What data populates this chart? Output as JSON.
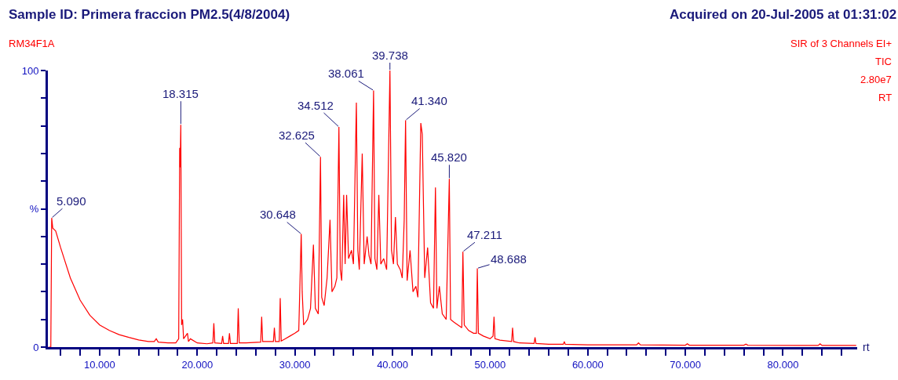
{
  "chart_data": {
    "type": "line",
    "title": "Sample ID: Primera fraccion PM2.5(4/8/2004)",
    "subtitle": "Acquired on 20-Jul-2005 at 01:31:02",
    "xlabel": "rt",
    "annotations": [
      "RM34F1A",
      "SIR of 3 Channels EI+",
      "TIC",
      "2.80e7",
      "RT",
      {
        "text": "5.090",
        "x": 5.09,
        "y": 46.7
      },
      {
        "text": "18.315",
        "x": 18.315,
        "y": 80.4
      },
      {
        "text": "30.648",
        "x": 30.648,
        "y": 40.9
      },
      {
        "text": "32.625",
        "x": 32.625,
        "y": 68.8
      },
      {
        "text": "34.512",
        "x": 34.512,
        "y": 79.6
      },
      {
        "text": "38.061",
        "x": 38.061,
        "y": 92.8
      },
      {
        "text": "39.738",
        "x": 39.738,
        "y": 100
      },
      {
        "text": "41.340",
        "x": 41.34,
        "y": 82
      },
      {
        "text": "45.820",
        "x": 45.82,
        "y": 60.8
      },
      {
        "text": "47.211",
        "x": 47.211,
        "y": 34.5
      },
      {
        "text": "48.688",
        "x": 48.688,
        "y": 28.5
      }
    ],
    "series": [
      {
        "color": "#ff0000",
        "x": [
          4.75,
          5.0,
          5.09,
          5.2,
          5.5,
          6,
          7,
          8,
          9,
          10,
          11,
          12,
          13,
          14,
          15,
          15.6,
          15.8,
          16,
          17,
          17.8,
          18.1,
          18.2,
          18.25,
          18.315,
          18.4,
          18.5,
          18.6,
          19,
          19.1,
          19.3,
          20,
          21,
          21.6,
          21.7,
          21.8,
          22.5,
          22.6,
          22.7,
          23.2,
          23.3,
          23.4,
          24.1,
          24.2,
          24.3,
          25,
          26.5,
          26.6,
          26.7,
          27.8,
          27.9,
          28,
          28.4,
          28.5,
          28.6,
          29,
          29.5,
          30,
          30.4,
          30.648,
          30.75,
          30.9,
          31.3,
          31.6,
          31.9,
          32.1,
          32.4,
          32.625,
          32.75,
          33,
          33.3,
          33.6,
          33.8,
          34.1,
          34.3,
          34.512,
          34.65,
          34.8,
          35.0,
          35.15,
          35.3,
          35.5,
          35.8,
          36.0,
          36.3,
          36.45,
          36.6,
          36.9,
          37.1,
          37.4,
          37.6,
          37.8,
          38.061,
          38.2,
          38.4,
          38.6,
          38.8,
          39.1,
          39.4,
          39.738,
          39.9,
          40.1,
          40.3,
          40.5,
          40.8,
          41.0,
          41.2,
          41.34,
          41.5,
          41.8,
          42.1,
          42.4,
          42.6,
          42.9,
          43.05,
          43.3,
          43.6,
          43.9,
          44.2,
          44.4,
          44.55,
          44.8,
          45.1,
          45.5,
          45.82,
          45.95,
          46.3,
          46.7,
          47.1,
          47.211,
          47.35,
          47.8,
          48.3,
          48.6,
          48.688,
          48.8,
          49.3,
          50.0,
          50.3,
          50.4,
          50.5,
          51,
          52.2,
          52.3,
          52.4,
          53,
          54.5,
          54.6,
          54.7,
          56,
          57.5,
          57.6,
          57.7,
          60,
          62,
          65,
          65.2,
          65.4,
          70,
          70.2,
          70.4,
          76,
          76.2,
          76.4,
          83.6,
          83.8,
          84,
          87.5
        ],
        "values": [
          0,
          0,
          46.7,
          43,
          42,
          36,
          25,
          17,
          11.5,
          8,
          6,
          4.5,
          3.5,
          2.6,
          2,
          2,
          3,
          1.8,
          1.5,
          1.5,
          3,
          72,
          65,
          80.4,
          8,
          10,
          3,
          5,
          2,
          3,
          1.5,
          1.2,
          1.5,
          8.6,
          1.5,
          1.3,
          4,
          1.3,
          1.3,
          5,
          1.3,
          1.3,
          14,
          1.5,
          1.5,
          1.8,
          11,
          2,
          2,
          7,
          2,
          2,
          17.7,
          2.2,
          3,
          4,
          5,
          6,
          40.9,
          20,
          8,
          10,
          14,
          37,
          14,
          12,
          68.8,
          18,
          15,
          25,
          46,
          20,
          22,
          25,
          79.6,
          28,
          24,
          55,
          30,
          55,
          32,
          35,
          30,
          88.4,
          35,
          28,
          70,
          30,
          40,
          33,
          30,
          92.8,
          32,
          28,
          55,
          30,
          32,
          28,
          100,
          35,
          30,
          47,
          30,
          28,
          25,
          46,
          82,
          24,
          35,
          20,
          22,
          18,
          81,
          77,
          25,
          36,
          16,
          14,
          57.7,
          14,
          22,
          12,
          10,
          60.8,
          10,
          9,
          8,
          7,
          34.5,
          8,
          6,
          5,
          5,
          28.5,
          5,
          4,
          3,
          4,
          11,
          3,
          2.5,
          2,
          7,
          2,
          1.5,
          1.3,
          3.5,
          1.3,
          1,
          1,
          2,
          1,
          0.8,
          0.8,
          0.8,
          1.5,
          0.8,
          0.7,
          1.2,
          0.7,
          0.7,
          1.1,
          0.7,
          0.6,
          1.2,
          0.6,
          0.6
        ]
      }
    ],
    "xlim": [
      4.7,
      87.6
    ],
    "xticks": [
      {
        "value": 6,
        "label": null
      },
      {
        "value": 8,
        "label": null
      },
      {
        "value": 10,
        "label": "10.000"
      },
      {
        "value": 12,
        "label": null
      },
      {
        "value": 14,
        "label": null
      },
      {
        "value": 16,
        "label": null
      },
      {
        "value": 18,
        "label": null
      },
      {
        "value": 20,
        "label": "20.000"
      },
      {
        "value": 22,
        "label": null
      },
      {
        "value": 24,
        "label": null
      },
      {
        "value": 26,
        "label": null
      },
      {
        "value": 28,
        "label": null
      },
      {
        "value": 30,
        "label": "30.000"
      },
      {
        "value": 32,
        "label": null
      },
      {
        "value": 34,
        "label": null
      },
      {
        "value": 36,
        "label": null
      },
      {
        "value": 38,
        "label": null
      },
      {
        "value": 40,
        "label": "40.000"
      },
      {
        "value": 42,
        "label": null
      },
      {
        "value": 44,
        "label": null
      },
      {
        "value": 46,
        "label": null
      },
      {
        "value": 48,
        "label": null
      },
      {
        "value": 50,
        "label": "50.000"
      },
      {
        "value": 52,
        "label": null
      },
      {
        "value": 54,
        "label": null
      },
      {
        "value": 56,
        "label": null
      },
      {
        "value": 58,
        "label": null
      },
      {
        "value": 60,
        "label": "60.000"
      },
      {
        "value": 62,
        "label": null
      },
      {
        "value": 64,
        "label": null
      },
      {
        "value": 66,
        "label": null
      },
      {
        "value": 68,
        "label": null
      },
      {
        "value": 70,
        "label": "70.000"
      },
      {
        "value": 72,
        "label": null
      },
      {
        "value": 74,
        "label": null
      },
      {
        "value": 76,
        "label": null
      },
      {
        "value": 78,
        "label": null
      },
      {
        "value": 80,
        "label": "80.000"
      },
      {
        "value": 82,
        "label": null
      },
      {
        "value": 84,
        "label": null
      },
      {
        "value": 86,
        "label": null
      }
    ],
    "ylim": [
      0,
      100
    ],
    "yticks": [
      0,
      {
        "value": 10,
        "label": null
      },
      {
        "value": 20,
        "label": null
      },
      {
        "value": 30,
        "label": null
      },
      {
        "value": 40,
        "label": null
      },
      {
        "value": 50,
        "label": "%"
      },
      {
        "value": 60,
        "label": null
      },
      {
        "value": 70,
        "label": null
      },
      {
        "value": 80,
        "label": null
      },
      {
        "value": 90,
        "label": null
      },
      100
    ],
    "marker": "none",
    "line_style": "solid"
  }
}
